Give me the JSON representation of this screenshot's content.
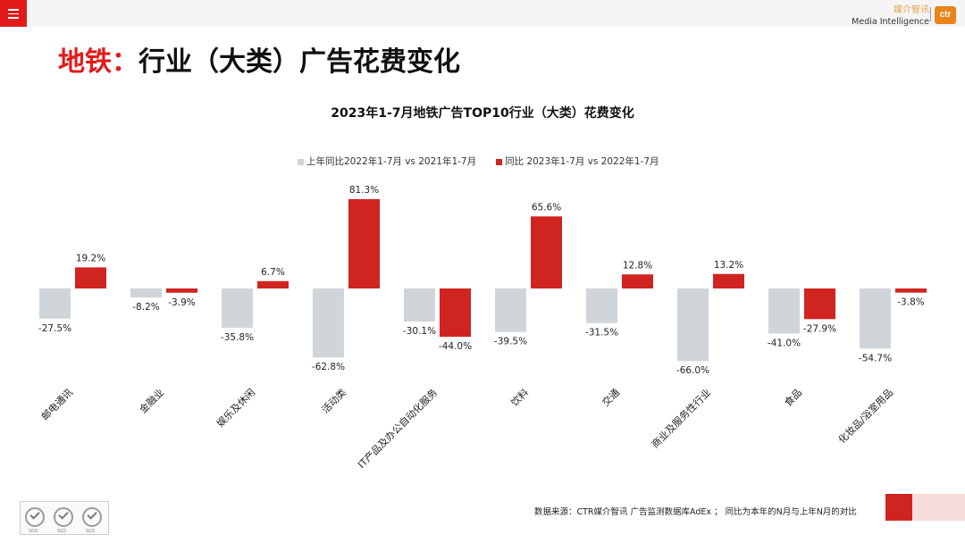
{
  "header": {
    "brand_cn": "媒介智讯",
    "brand_en": "Media Intelligence",
    "logo_text": "ctr"
  },
  "page": {
    "title_highlight": "地铁：",
    "title_rest": "行业（大类）广告花费变化"
  },
  "colors": {
    "accent": "#e21a1a",
    "series_prev": "#d0d5d9",
    "series_curr": "#d02420"
  },
  "chart_data": {
    "type": "bar",
    "title": "2023年1-7月地铁广告TOP10行业（大类）花费变化",
    "categories": [
      "邮电通讯",
      "金融业",
      "娱乐及休闲",
      "活动类",
      "IT产品及办公自动化服务",
      "饮料",
      "交通",
      "商业及服务性行业",
      "食品",
      "化妆品/浴室用品"
    ],
    "series": [
      {
        "name": "上年同比2022年1-7月  vs 2021年1-7月",
        "color": "#d0d5d9",
        "values": [
          -27.5,
          -8.2,
          -35.8,
          -62.8,
          -30.1,
          -39.5,
          -31.5,
          -66.0,
          -41.0,
          -54.7
        ]
      },
      {
        "name": "同比 2023年1-7月  vs 2022年1-7月",
        "color": "#d02420",
        "values": [
          19.2,
          -3.9,
          6.7,
          81.3,
          -44.0,
          65.6,
          12.8,
          13.2,
          -27.9,
          -3.8
        ]
      }
    ],
    "value_format": "percent_1dp",
    "ylim": [
      -70,
      85
    ],
    "grid": false,
    "legend_position": "top"
  },
  "footer": {
    "sgs_labels": [
      "SGS",
      "SGS",
      "SGS"
    ],
    "source": "数据来源：CTR媒介智讯 广告监测数据库AdEx ；  同比为本年的N月与上年N月的对比"
  }
}
